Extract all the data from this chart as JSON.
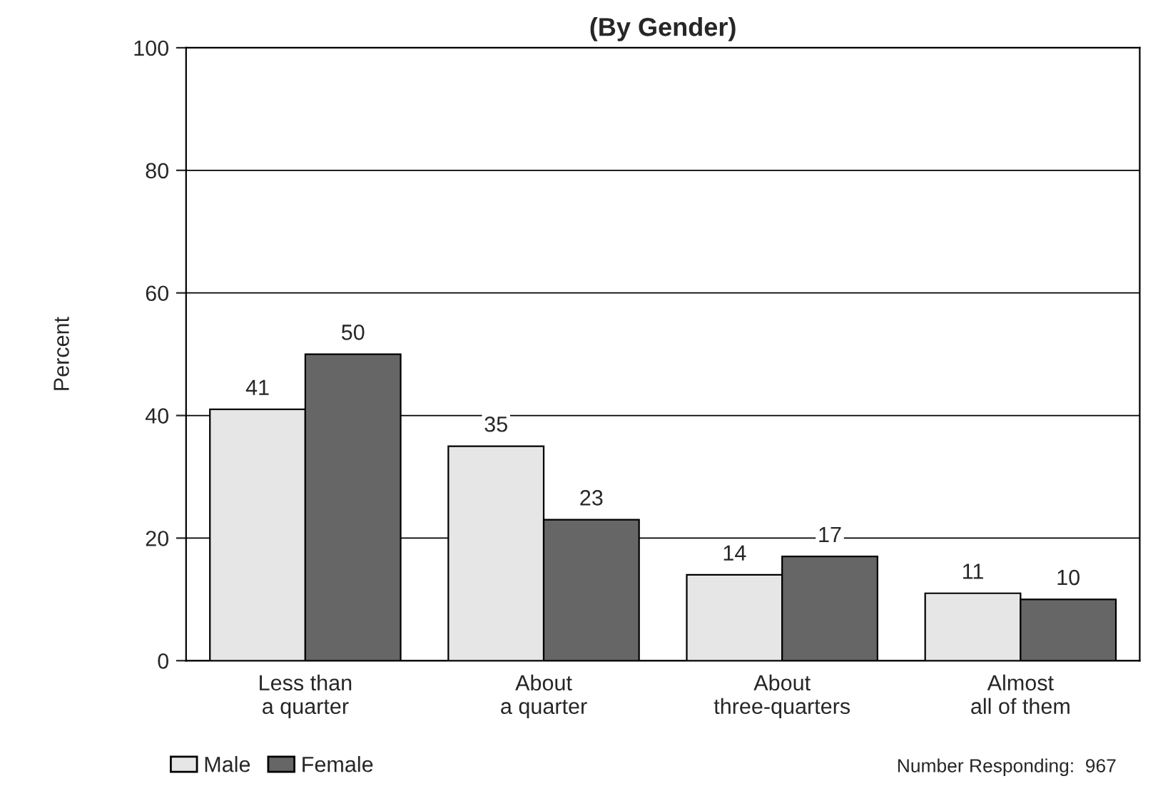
{
  "chart_data": {
    "type": "bar",
    "title": "(By Gender)",
    "ylabel": "Percent",
    "categories": [
      "Less than\na quarter",
      "About\na quarter",
      "About\nthree-quarters",
      "Almost\nall of them"
    ],
    "series": [
      {
        "name": "Male",
        "color": "#e6e6e6",
        "values": [
          41,
          35,
          14,
          11
        ]
      },
      {
        "name": "Female",
        "color": "#666666",
        "values": [
          50,
          23,
          17,
          10
        ]
      }
    ],
    "ylim": [
      0,
      100
    ],
    "yticks": [
      0,
      20,
      40,
      60,
      80,
      100
    ],
    "grid": "y",
    "data_labels": true,
    "legend": "bottom left",
    "annotations": [
      "Number Responding:  967"
    ]
  }
}
